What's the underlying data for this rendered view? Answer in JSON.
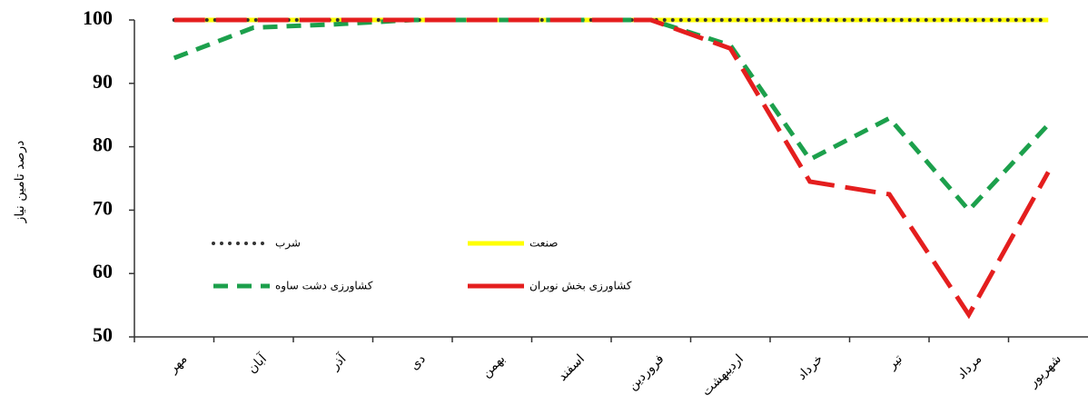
{
  "chart_data": {
    "type": "line",
    "y_label": "درصد تامین نیاز",
    "categories": [
      "مهر",
      "آبان",
      "آذر",
      "دی",
      "بهمن",
      "اسفند",
      "فروردین",
      "اردیبهشت",
      "خرداد",
      "تیر",
      "مرداد",
      "شهریور"
    ],
    "series": [
      {
        "name": "صنعت",
        "color": "#ffff00",
        "style": "solid",
        "values": [
          100,
          100,
          100,
          100,
          100,
          100,
          100,
          100,
          100,
          100,
          100,
          100
        ]
      },
      {
        "name": "شرب",
        "color": "#333333",
        "style": "dotted",
        "values": [
          100,
          100,
          100,
          100,
          100,
          100,
          100,
          100,
          100,
          100,
          100,
          100
        ]
      },
      {
        "name": "کشاورزی دشت ساوه",
        "color": "#1ca04c",
        "style": "dashed",
        "values": [
          94,
          98.8,
          99.3,
          100,
          100,
          100,
          100,
          96,
          78,
          84.5,
          70,
          83.5
        ]
      },
      {
        "name": "کشاورزی بخش نوبران",
        "color": "#e41e1e",
        "style": "longdash",
        "values": [
          100,
          100,
          100,
          100,
          100,
          100,
          100,
          95.5,
          74.5,
          72.5,
          53.5,
          76
        ]
      }
    ],
    "ylim": [
      50,
      100
    ],
    "yticks": [
      50,
      60,
      70,
      80,
      90,
      100
    ],
    "grid": false
  }
}
